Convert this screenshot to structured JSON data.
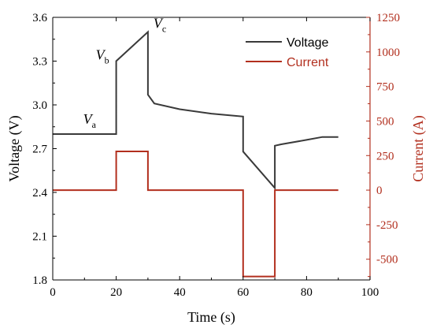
{
  "chart_data": {
    "type": "line",
    "xlabel": "Time (s)",
    "ylabel_left": "Voltage (V)",
    "ylabel_right": "Current (A)",
    "xlim": [
      0,
      100
    ],
    "ylim_left": [
      1.8,
      3.6
    ],
    "ylim_right": [
      -650,
      1250
    ],
    "x_ticks": [
      0,
      20,
      40,
      60,
      80,
      100
    ],
    "y_left_ticks": [
      1.8,
      2.1,
      2.4,
      2.7,
      3.0,
      3.3,
      3.6
    ],
    "y_right_ticks": [
      -500,
      -250,
      0,
      250,
      500,
      750,
      1000,
      1250
    ],
    "x_tick_labels": [
      "0",
      "20",
      "40",
      "60",
      "80",
      "100"
    ],
    "y_left_tick_labels": [
      "1.8",
      "2.1",
      "2.4",
      "2.7",
      "3.0",
      "3.3",
      "3.6"
    ],
    "y_right_tick_labels": [
      "-500",
      "-250",
      "0",
      "250",
      "500",
      "750",
      "1000",
      "1250"
    ],
    "legend_position": "top-right",
    "grid": false,
    "series": [
      {
        "name": "Voltage",
        "axis": "left",
        "color": "#3a3a3a",
        "x": [
          0,
          20,
          20,
          30,
          30,
          32,
          40,
          50,
          60,
          60,
          70,
          70,
          72,
          80,
          85,
          90
        ],
        "y": [
          2.8,
          2.8,
          3.3,
          3.5,
          3.07,
          3.01,
          2.97,
          2.94,
          2.92,
          2.68,
          2.43,
          2.72,
          2.73,
          2.76,
          2.78,
          2.78
        ]
      },
      {
        "name": "Current",
        "axis": "right",
        "color": "#b22f1e",
        "x": [
          0,
          20,
          20,
          30,
          30,
          60,
          60,
          70,
          70,
          90
        ],
        "y": [
          0,
          0,
          280,
          280,
          0,
          0,
          -625,
          -625,
          0,
          0
        ]
      }
    ],
    "annotations": [
      {
        "text": "V",
        "sub": "a",
        "x": 20,
        "y": 2.8
      },
      {
        "text": "V",
        "sub": "b",
        "x": 20,
        "y": 3.3
      },
      {
        "text": "V",
        "sub": "c",
        "x": 30,
        "y": 3.5
      }
    ],
    "colors": {
      "axis": "#000000",
      "right_axis": "#b22f1e"
    }
  }
}
